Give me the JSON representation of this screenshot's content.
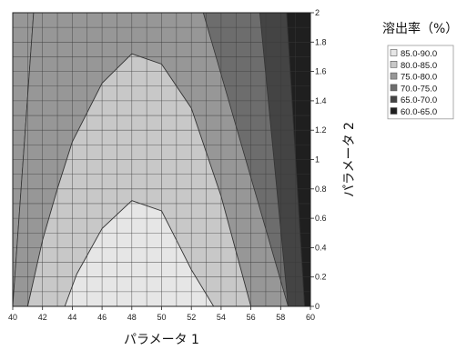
{
  "chart_data": {
    "type": "heatmap",
    "subtype": "filled-contour",
    "xlabel": "パラメータ 1",
    "ylabel": "パラメータ 2",
    "x_ticks": [
      "40",
      "42",
      "44",
      "46",
      "48",
      "50",
      "52",
      "54",
      "56",
      "58",
      "60"
    ],
    "y_ticks": [
      "0",
      "0.2",
      "0.4",
      "0.6",
      "0.8",
      "1",
      "1.2",
      "1.4",
      "1.6",
      "1.8",
      "2"
    ],
    "xlim": [
      40,
      60
    ],
    "ylim": [
      0,
      2
    ],
    "grid": true,
    "legend": {
      "title": "溶出率（%）",
      "placement": "top-right",
      "entries": [
        {
          "label": "85.0-90.0",
          "color": "#e6e6e6"
        },
        {
          "label": "80.0-85.0",
          "color": "#c8c8c8"
        },
        {
          "label": "75.0-80.0",
          "color": "#979797"
        },
        {
          "label": "70.0-75.0",
          "color": "#6d6d6d"
        },
        {
          "label": "65.0-70.0",
          "color": "#444444"
        },
        {
          "label": "60.0-65.0",
          "color": "#1f1f1f"
        }
      ]
    },
    "contour_bands": [
      {
        "range": "60.0-65.0",
        "color": "#1f1f1f",
        "x": [
          58.4,
          60,
          60,
          59.6
        ],
        "y": [
          2,
          2,
          0,
          0
        ]
      },
      {
        "range": "65.0-70.0",
        "color": "#444444",
        "x": [
          56.6,
          58.4,
          59.6,
          58.5
        ],
        "y": [
          2,
          2,
          0,
          0
        ]
      },
      {
        "range": "70.0-75.0",
        "color": "#6d6d6d",
        "x": [
          40,
          41.4,
          40,
          58.5,
          56.6,
          60,
          60
        ],
        "y": [
          2,
          2,
          0,
          0,
          2,
          2,
          0
        ]
      }
    ],
    "contour_levels": [
      {
        "level": "70.0-75.0 / 75.0-80.0",
        "color": "#979797",
        "x": [
          41.4,
          40,
          40
        ],
        "y": [
          2,
          0,
          2
        ]
      },
      {
        "level": "75.0-80.0 / 80.0-85.0",
        "color": "#c8c8c8",
        "x": [
          41,
          42,
          43,
          44,
          46,
          48,
          50,
          52,
          54,
          56
        ],
        "y": [
          0,
          0.45,
          0.8,
          1.12,
          1.52,
          1.72,
          1.65,
          1.35,
          0.75,
          0
        ]
      },
      {
        "level": "80.0-85.0 / 85.0-90.0",
        "color": "#e6e6e6",
        "x": [
          43.5,
          44.3,
          46,
          48,
          50,
          51,
          52,
          53.5
        ],
        "y": [
          0,
          0.22,
          0.53,
          0.72,
          0.65,
          0.45,
          0.25,
          0
        ]
      },
      {
        "level": "70.0-75.0 / 75.0-80.0 (right)",
        "color": "#979797",
        "x": [
          52.8,
          56.6,
          58.5
        ],
        "y": [
          2,
          2,
          0
        ]
      }
    ]
  }
}
